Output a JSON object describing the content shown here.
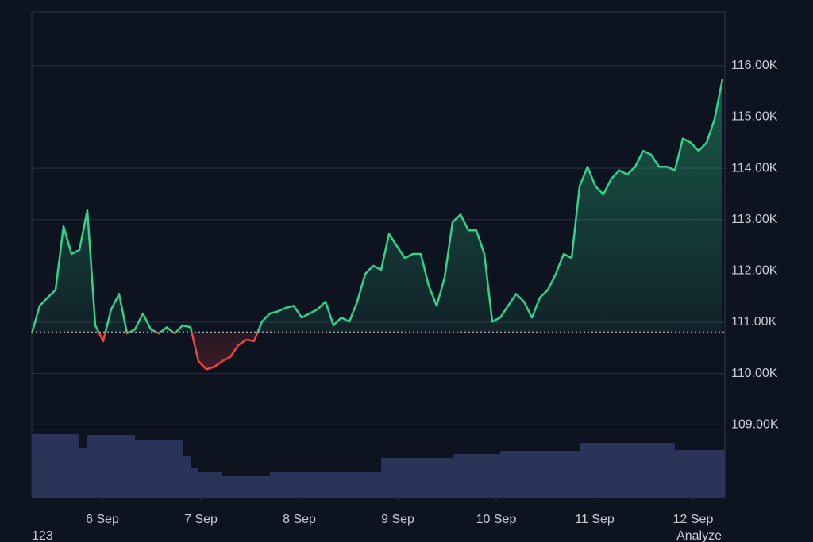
{
  "chart_data": {
    "type": "baseline",
    "series": [
      {
        "name": "price",
        "color": "#2fd38b",
        "below_color": "#ef4444",
        "values": [
          110.78,
          111.32,
          111.48,
          111.63,
          112.87,
          112.33,
          112.41,
          113.18,
          110.94,
          110.63,
          111.25,
          111.55,
          110.78,
          110.86,
          111.17,
          110.86,
          110.78,
          110.9,
          110.78,
          110.94,
          110.9,
          110.24,
          110.08,
          110.13,
          110.24,
          110.32,
          110.55,
          110.66,
          110.63,
          111.01,
          111.17,
          111.21,
          111.28,
          111.32,
          111.09,
          111.17,
          111.25,
          111.4,
          110.94,
          111.09,
          111.01,
          111.4,
          111.94,
          112.1,
          112.02,
          112.72,
          112.48,
          112.25,
          112.33,
          112.33,
          111.71,
          111.32,
          111.87,
          112.95,
          113.1,
          112.79,
          112.79,
          112.33,
          111.01,
          111.09,
          111.32,
          111.55,
          111.4,
          111.09,
          111.48,
          111.63,
          111.94,
          112.33,
          112.25,
          113.65,
          114.03,
          113.65,
          113.49,
          113.8,
          113.96,
          113.88,
          114.03,
          114.34,
          114.27,
          114.03,
          114.03,
          113.96,
          114.58,
          114.5,
          114.34,
          114.5,
          114.96,
          115.74
        ]
      },
      {
        "name": "volume",
        "color": "#2b3358",
        "values": [
          80,
          80,
          80,
          80,
          80,
          80,
          62,
          79,
          79,
          79,
          79,
          79,
          79,
          72,
          72,
          72,
          72,
          72,
          72,
          52,
          37,
          32,
          32,
          32,
          27,
          27,
          27,
          27,
          27,
          27,
          32,
          32,
          32,
          32,
          32,
          32,
          32,
          32,
          32,
          32,
          32,
          32,
          32,
          32,
          50,
          50,
          50,
          50,
          50,
          50,
          50,
          50,
          50,
          55,
          55,
          55,
          55,
          55,
          55,
          59,
          59,
          59,
          59,
          59,
          59,
          59,
          59,
          59,
          59,
          69,
          69,
          69,
          69,
          69,
          69,
          69,
          69,
          69,
          69,
          69,
          69,
          60,
          60,
          60,
          60,
          60,
          60,
          60
        ]
      }
    ],
    "baseline": 110.81,
    "xlim": [
      0,
      87.3
    ],
    "xticks": [
      {
        "value": 8.9,
        "label": "6 Sep"
      },
      {
        "value": 21.3,
        "label": "7 Sep"
      },
      {
        "value": 33.7,
        "label": "8 Sep"
      },
      {
        "value": 46.1,
        "label": "9 Sep"
      },
      {
        "value": 58.5,
        "label": "10 Sep"
      },
      {
        "value": 70.9,
        "label": "11 Sep"
      },
      {
        "value": 83.3,
        "label": "12 Sep"
      }
    ],
    "ylim": [
      107.58,
      117.05
    ],
    "yticks": [
      {
        "value": 109,
        "label": "109.00K"
      },
      {
        "value": 110,
        "label": "110.00K"
      },
      {
        "value": 111,
        "label": "111.00K"
      },
      {
        "value": 112,
        "label": "112.00K"
      },
      {
        "value": 113,
        "label": "113.00K"
      },
      {
        "value": 114,
        "label": "114.00K"
      },
      {
        "value": 115,
        "label": "115.00K"
      },
      {
        "value": 116,
        "label": "116.00K"
      }
    ],
    "grid": true
  },
  "footer": {
    "logo": "123",
    "button": "Analyze"
  }
}
